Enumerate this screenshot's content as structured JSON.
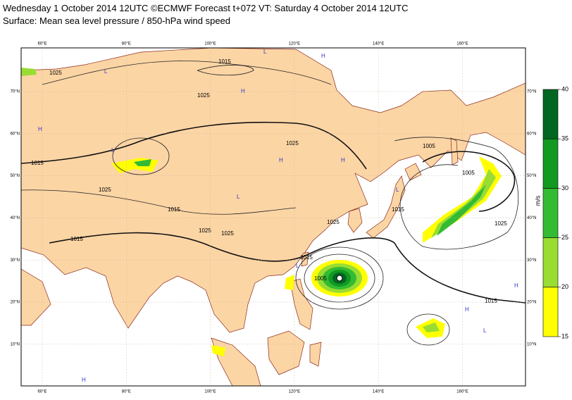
{
  "title": "Wednesday 1 October 2014 12UTC ©ECMWF Forecast t+072 VT: Saturday 4 October 2014 12UTC",
  "subtitle": "Surface: Mean sea level pressure / 850-hPa wind speed",
  "map": {
    "longitude_labels": [
      "60°E",
      "80°E",
      "100°E",
      "120°E",
      "140°E",
      "160°E"
    ],
    "latitude_labels": [
      "70°N",
      "60°N",
      "50°N",
      "40°N",
      "30°N",
      "20°N",
      "10°N"
    ],
    "isobar_labels": [
      "1025",
      "1015",
      "1025",
      "1015",
      "1025",
      "1015",
      "1025",
      "1025",
      "1015",
      "1025",
      "1005",
      "1015",
      "1005",
      "1025",
      "1015",
      "1005",
      "1025",
      "1015"
    ],
    "pressure_centres": [
      "H",
      "L",
      "H",
      "L",
      "H",
      "L",
      "H",
      "L",
      "H",
      "L",
      "H",
      "L",
      "H",
      "L",
      "H"
    ]
  },
  "colorbar": {
    "unit": "m/s",
    "ticks": [
      15,
      20,
      25,
      30,
      35,
      40
    ],
    "colors": [
      "#ffff00",
      "#99dd33",
      "#33bb33",
      "#119922",
      "#006622"
    ]
  }
}
